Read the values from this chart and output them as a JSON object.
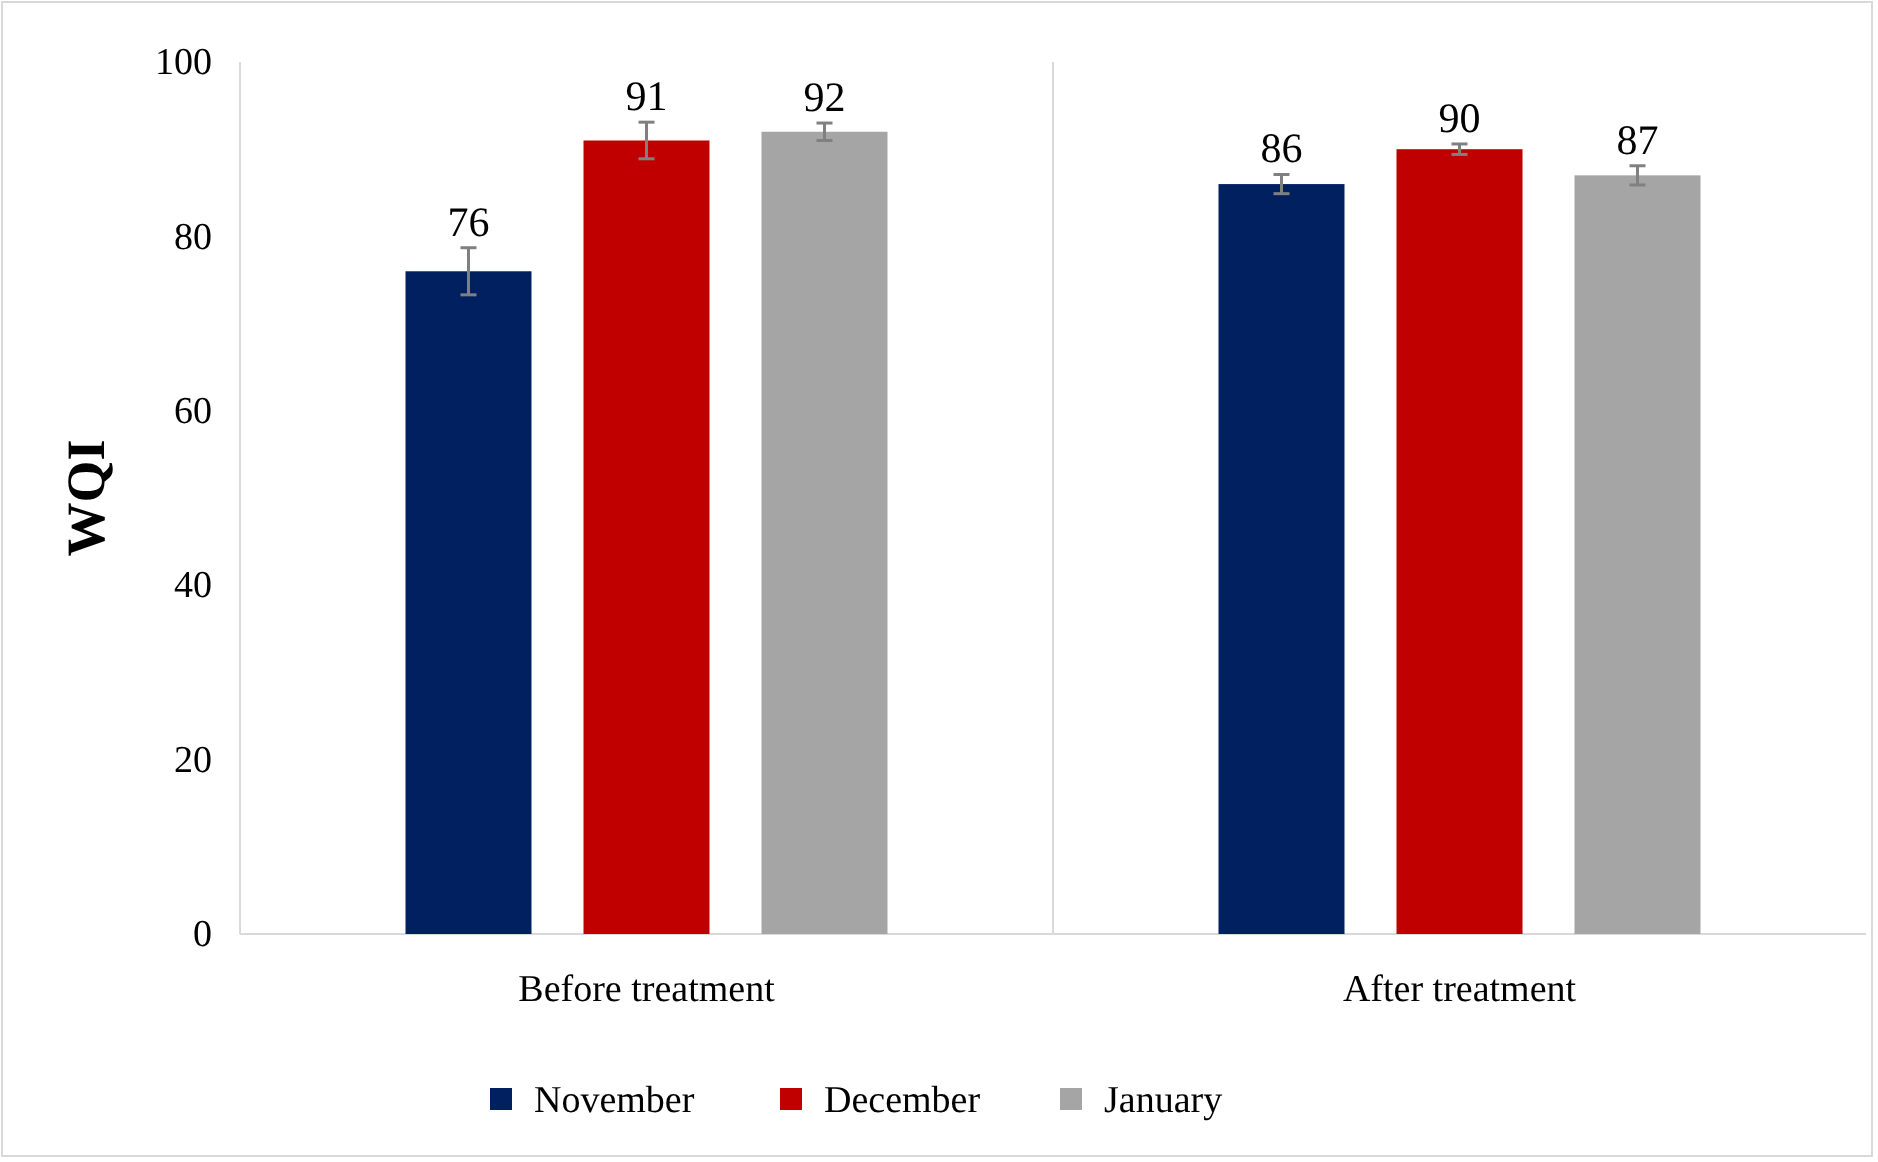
{
  "chart_data": {
    "type": "bar",
    "ylabel": "WQI",
    "categories": [
      "Before treatment",
      "After treatment"
    ],
    "series": [
      {
        "name": "November",
        "color": "#002060",
        "values": [
          76,
          86
        ],
        "errors": [
          2.7,
          1.1
        ]
      },
      {
        "name": "December",
        "color": "#c00000",
        "values": [
          91,
          90
        ],
        "errors": [
          2.1,
          0.6
        ]
      },
      {
        "name": "January",
        "color": "#a5a5a5",
        "values": [
          92,
          87
        ],
        "errors": [
          1.0,
          1.1
        ]
      }
    ],
    "ylim": [
      0,
      100
    ],
    "yticks": [
      0,
      20,
      40,
      60,
      80,
      100
    ],
    "data_labels": true,
    "legend": "bottom",
    "grid": false
  }
}
